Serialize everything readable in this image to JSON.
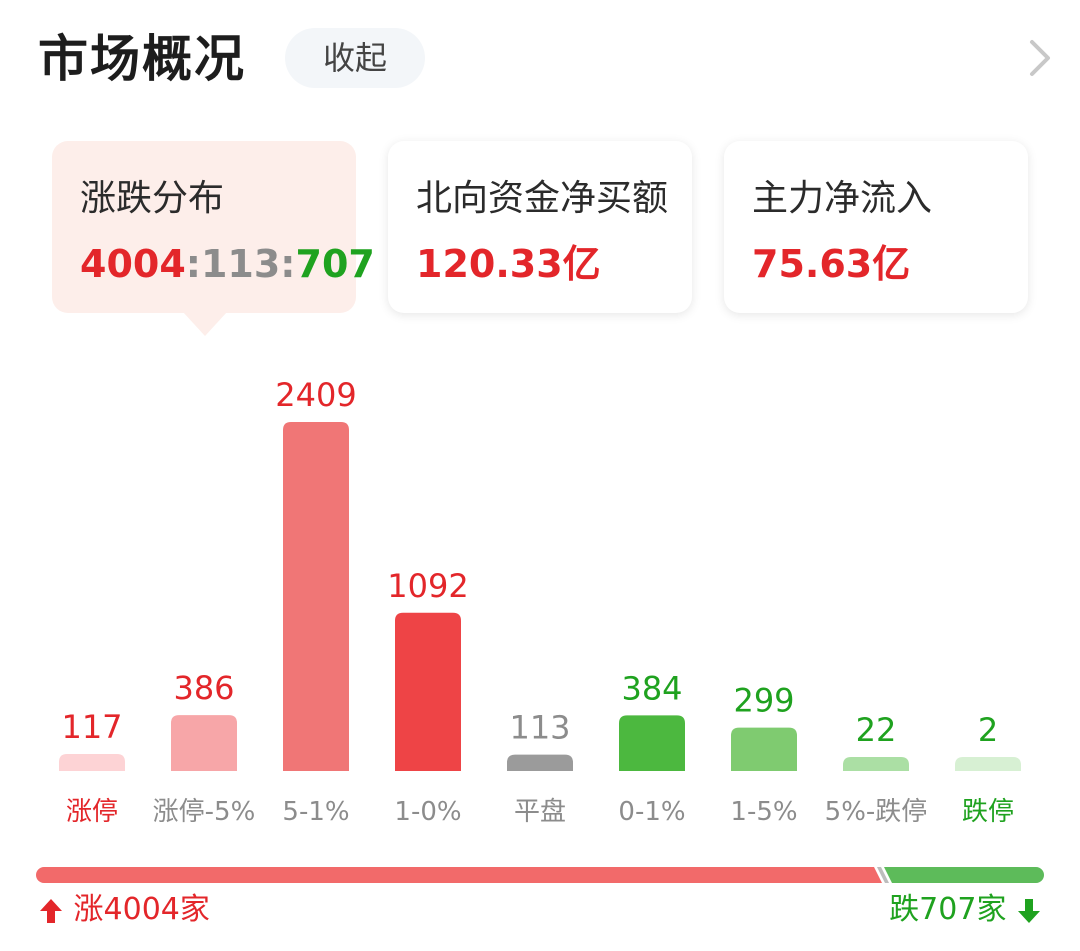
{
  "header": {
    "title": "市场概况",
    "collapse_label": "收起",
    "chevron_icon": "chevron-right-icon"
  },
  "cards": [
    {
      "title": "涨跌分布",
      "up": "4004",
      "sep": ":",
      "flat": "113",
      "down": "707"
    },
    {
      "title": "北向资金净买额",
      "value": "120.33亿"
    },
    {
      "title": "主力净流入",
      "value": "75.63亿"
    }
  ],
  "chart_data": {
    "type": "bar",
    "categories": [
      "涨停",
      "涨停-5%",
      "5-1%",
      "1-0%",
      "平盘",
      "0-1%",
      "1-5%",
      "5%-跌停",
      "跌停"
    ],
    "values": [
      117,
      386,
      2409,
      1092,
      113,
      384,
      299,
      22,
      2
    ],
    "value_labels": [
      "117",
      "386",
      "2409",
      "1092",
      "113",
      "384",
      "299",
      "22",
      "2"
    ],
    "bar_colors": [
      "#fdd3d5",
      "#f7a6a8",
      "#f07676",
      "#ee4446",
      "#9b9b9b",
      "#4cb83f",
      "#7fcb70",
      "#abdfa4",
      "#d7f0d3"
    ],
    "label_colors": [
      "#e3262a",
      "#8c8c8c",
      "#8c8c8c",
      "#8c8c8c",
      "#8c8c8c",
      "#8c8c8c",
      "#8c8c8c",
      "#8c8c8c",
      "#1fa21f"
    ],
    "value_colors": [
      "#e3262a",
      "#e3262a",
      "#e3262a",
      "#e3262a",
      "#8c8c8c",
      "#1fa21f",
      "#1fa21f",
      "#1fa21f",
      "#1fa21f"
    ]
  },
  "footer": {
    "up_text": "涨4004家",
    "down_text": "跌707家",
    "up_ratio": 0.85,
    "up_color": "#f26a6a",
    "down_color": "#5dbb5a"
  }
}
